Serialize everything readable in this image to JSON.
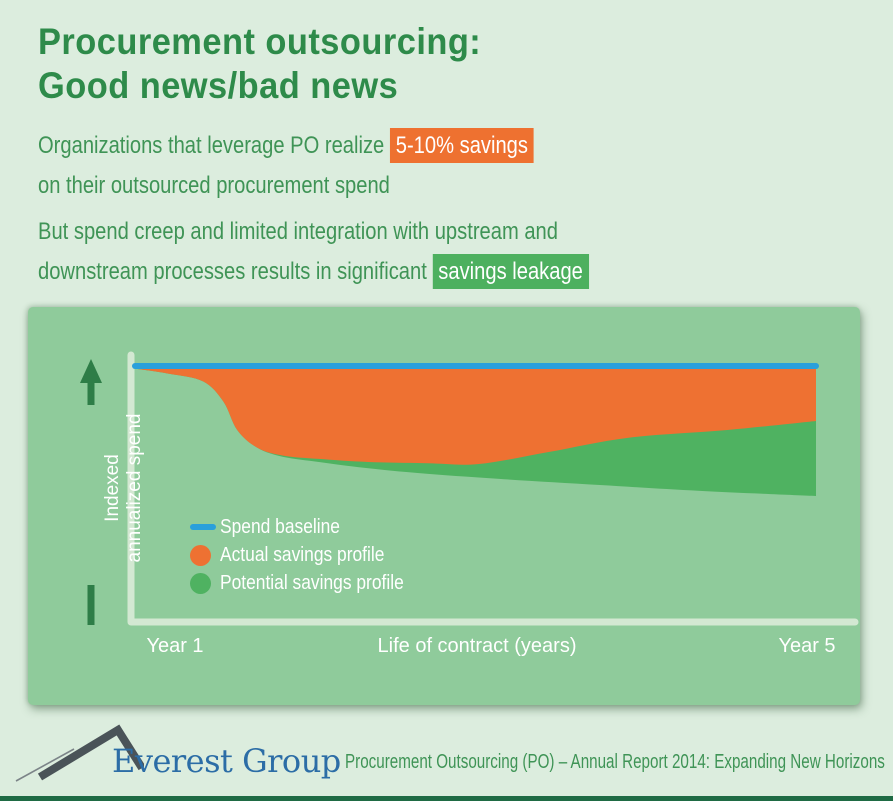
{
  "page": {
    "background": "#dcedde",
    "bottom_bar_color": "#1f6b44"
  },
  "header": {
    "title_line1": "Procurement outsourcing:",
    "title_line2": "Good news/bad news",
    "title_color": "#2e8b4a"
  },
  "intro": {
    "good": {
      "line1_pre": "Organizations that leverage PO realize ",
      "highlight": "5-10% savings",
      "highlight_bg": "#ee7130",
      "line2": "on their outsourced procurement spend"
    },
    "bad": {
      "line1": "But spend creep and limited integration with upstream and",
      "line2_pre": "downstream processes results in significant ",
      "highlight": "savings leakage",
      "highlight_bg": "#4db05f"
    }
  },
  "chart_data": {
    "type": "area",
    "title": "",
    "xlabel": "Life of contract (years)",
    "ylabel": "Indexed annualized spend",
    "ylabel_lines": [
      "Indexed",
      "annualized spend"
    ],
    "x_ticks": [
      "Year 1",
      "Year 5"
    ],
    "x_range": [
      1,
      5
    ],
    "y_range": [
      0,
      100
    ],
    "grid": false,
    "legend_position": "inside-bottom-left",
    "panel_bg": "#8fcb9b",
    "series": [
      {
        "name": "Spend baseline",
        "type": "line",
        "color": "#2aa0db",
        "points": [
          [
            1,
            100
          ],
          [
            5,
            100
          ]
        ]
      },
      {
        "name": "Actual savings profile",
        "type": "area",
        "color": "#ee7132",
        "points": [
          [
            1,
            99
          ],
          [
            1.2,
            97
          ],
          [
            1.4,
            94
          ],
          [
            1.52,
            86
          ],
          [
            1.6,
            75
          ],
          [
            1.72,
            68
          ],
          [
            1.87,
            65
          ],
          [
            2.08,
            63.7
          ],
          [
            2.37,
            62.5
          ],
          [
            2.72,
            62
          ],
          [
            3.02,
            61.7
          ],
          [
            3.43,
            66.4
          ],
          [
            3.9,
            72
          ],
          [
            4.48,
            75
          ],
          [
            5,
            78.5
          ]
        ]
      },
      {
        "name": "Potential savings profile",
        "type": "area",
        "color": "#4fb261",
        "points": [
          [
            1,
            99
          ],
          [
            1.2,
            97
          ],
          [
            1.4,
            94
          ],
          [
            1.52,
            86
          ],
          [
            1.6,
            75
          ],
          [
            1.72,
            68
          ],
          [
            1.87,
            64.5
          ],
          [
            2.08,
            62.5
          ],
          [
            2.31,
            60.5
          ],
          [
            2.66,
            58.2
          ],
          [
            3.14,
            55.9
          ],
          [
            3.73,
            53.5
          ],
          [
            4.32,
            51.2
          ],
          [
            5,
            49.2
          ]
        ]
      }
    ]
  },
  "footer": {
    "brand": "Everest Group",
    "report": "Procurement Outsourcing (PO) – Annual Report 2014: Expanding New Horizons"
  }
}
